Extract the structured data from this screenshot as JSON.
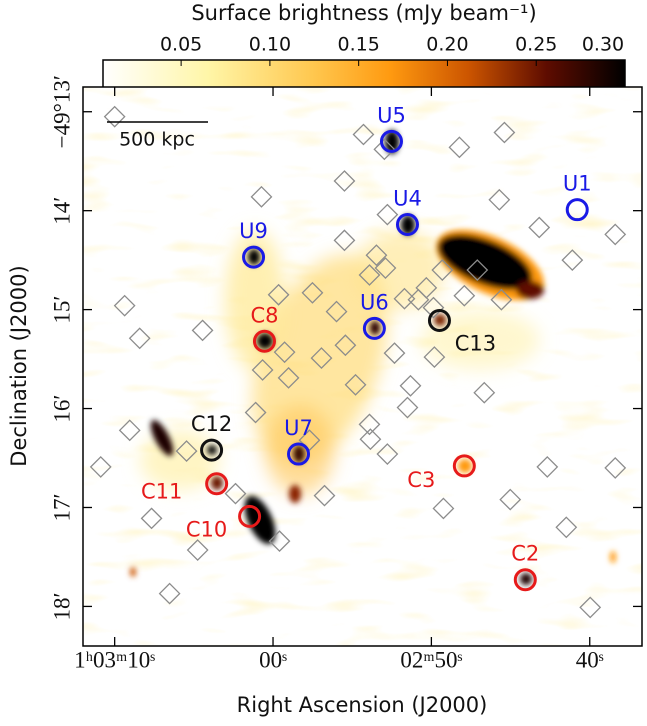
{
  "chart_data": {
    "type": "image",
    "title": "Surface brightness (mJy beam⁻¹)",
    "xlabel": "Right Ascension (J2000)",
    "ylabel": "Declination (J2000)",
    "xlim": [
      12.0,
      -23.3
    ],
    "ylim": [
      12.75,
      18.4
    ],
    "xticks": [
      {
        "value": 10,
        "label": "1ʰ03ᵐ10ˢ"
      },
      {
        "value": 0,
        "label": "00ˢ"
      },
      {
        "value": -10,
        "label": "02ᵐ50ˢ"
      },
      {
        "value": -20,
        "label": "40ˢ"
      }
    ],
    "yticks": [
      {
        "value": 13,
        "label": "−49°13′"
      },
      {
        "value": 14,
        "label": "14′"
      },
      {
        "value": 15,
        "label": "15′"
      },
      {
        "value": 16,
        "label": "16′"
      },
      {
        "value": 17,
        "label": "17′"
      },
      {
        "value": 18,
        "label": "18′"
      }
    ],
    "colorbar": {
      "lim": [
        0.006,
        0.3
      ],
      "ticks": [
        0.05,
        {
          "value": 0.1,
          "label": "0.10"
        },
        0.15,
        {
          "value": 0.2,
          "label": "0.20"
        },
        0.25,
        {
          "value": 0.3,
          "label": "0.30"
        }
      ]
    },
    "scale_bar": {
      "label": "500 kpc"
    },
    "sources": [
      {
        "name": "U5",
        "color": "#1a1ae6",
        "ra": -7.48,
        "dec": 13.3
      },
      {
        "name": "U4",
        "color": "#1a1ae6",
        "ra": -8.49,
        "dec": 14.14
      },
      {
        "name": "U1",
        "color": "#1a1ae6",
        "ra": -19.21,
        "dec": 13.99
      },
      {
        "name": "U9",
        "color": "#1a1ae6",
        "ra": 1.23,
        "dec": 14.47
      },
      {
        "name": "U6",
        "color": "#1a1ae6",
        "ra": -6.4,
        "dec": 15.19
      },
      {
        "name": "C8",
        "color": "#e61a1a",
        "ra": 0.54,
        "dec": 15.32
      },
      {
        "name": "C13",
        "color": "#111111",
        "ra": -10.51,
        "dec": 15.11
      },
      {
        "name": "C12",
        "color": "#111111",
        "ra": 3.88,
        "dec": 16.42
      },
      {
        "name": "U7",
        "color": "#1a1ae6",
        "ra": -1.61,
        "dec": 16.46
      },
      {
        "name": "C3",
        "color": "#e61a1a",
        "ra": -12.08,
        "dec": 16.58
      },
      {
        "name": "C11",
        "color": "#e61a1a",
        "ra": 3.56,
        "dec": 16.76
      },
      {
        "name": "C10",
        "color": "#e61a1a",
        "ra": 1.48,
        "dec": 17.09
      },
      {
        "name": "C2",
        "color": "#e61a1a",
        "ra": -15.93,
        "dec": 17.73
      }
    ],
    "diamonds": {
      "color": "#8c8c8c",
      "ra": [
        10.0,
        -5.71,
        -7.03,
        -11.77,
        -14.61,
        0.73,
        -4.51,
        -7.22,
        -14.29,
        -4.51,
        -6.53,
        -16.81,
        -21.61,
        -18.9,
        -6.09,
        -7.1,
        -8.3,
        -9.68,
        -10.69,
        -12.9,
        -0.35,
        -2.49,
        -12.08,
        -14.42,
        9.37,
        8.42,
        4.45,
        -4.01,
        -9.18,
        -10.13,
        -0.73,
        -3.06,
        0.66,
        -4.57,
        -0.98,
        -10.19,
        -7.67,
        -8.68,
        -5.21,
        -6.09,
        -8.49,
        -13.34,
        1.1,
        -2.3,
        -6.15,
        -7.22,
        -3.25,
        9.05,
        5.46,
        10.88,
        -17.32,
        -21.61,
        2.37,
        -10.76,
        -14.98,
        7.67,
        -0.41,
        4.76,
        -18.52,
        -20.03,
        6.53
      ],
      "dec": [
        13.05,
        13.23,
        13.38,
        13.36,
        13.21,
        13.86,
        13.7,
        14.04,
        13.89,
        14.3,
        14.45,
        14.17,
        14.24,
        14.5,
        14.65,
        14.58,
        14.89,
        14.78,
        14.6,
        14.6,
        14.85,
        14.83,
        14.86,
        14.9,
        14.96,
        15.29,
        15.21,
        15.02,
        14.9,
        14.98,
        15.43,
        15.49,
        15.61,
        15.36,
        15.69,
        15.48,
        15.44,
        15.77,
        15.76,
        16.16,
        15.99,
        15.84,
        16.04,
        16.32,
        16.31,
        16.46,
        16.88,
        16.22,
        16.43,
        16.59,
        16.59,
        16.6,
        16.86,
        17.01,
        16.92,
        17.11,
        17.34,
        17.43,
        17.2,
        18.01,
        17.87
      ]
    }
  }
}
